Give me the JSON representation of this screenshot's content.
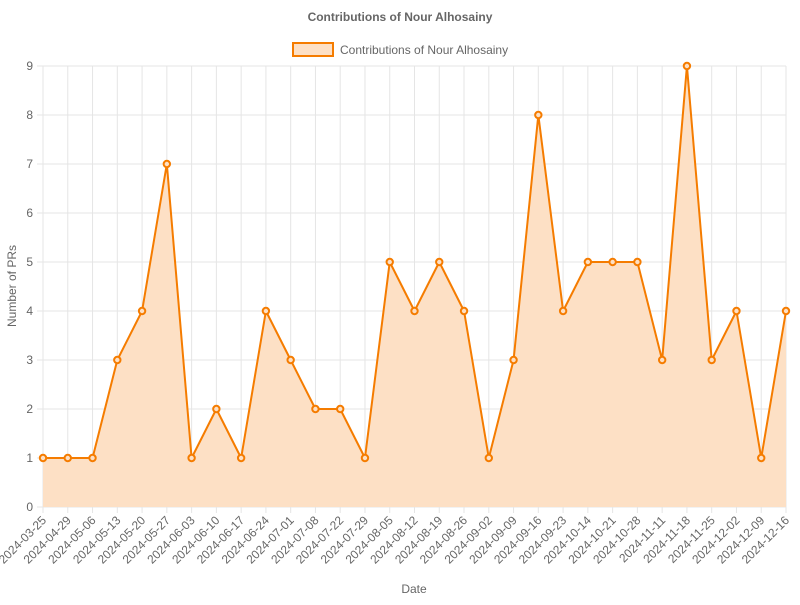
{
  "chart_data": {
    "type": "area",
    "title": "Contributions of Nour Alhosainy",
    "xlabel": "Date",
    "ylabel": "Number of PRs",
    "ylim": [
      0,
      9
    ],
    "grid": true,
    "legend_position": "top",
    "categories": [
      "2024-03-25",
      "2024-04-29",
      "2024-05-06",
      "2024-05-13",
      "2024-05-20",
      "2024-05-27",
      "2024-06-03",
      "2024-06-10",
      "2024-06-17",
      "2024-06-24",
      "2024-07-01",
      "2024-07-08",
      "2024-07-22",
      "2024-07-29",
      "2024-08-05",
      "2024-08-12",
      "2024-08-19",
      "2024-08-26",
      "2024-09-02",
      "2024-09-09",
      "2024-09-16",
      "2024-09-23",
      "2024-10-14",
      "2024-10-21",
      "2024-10-28",
      "2024-11-11",
      "2024-11-18",
      "2024-11-25",
      "2024-12-02",
      "2024-12-09",
      "2024-12-16"
    ],
    "y_ticks": [
      "0",
      "1",
      "2",
      "3",
      "4",
      "5",
      "6",
      "7",
      "8",
      "9"
    ],
    "series": [
      {
        "name": "Contributions of Nour Alhosainy",
        "values": [
          1,
          1,
          1,
          3,
          4,
          7,
          1,
          2,
          1,
          4,
          3,
          2,
          2,
          1,
          5,
          4,
          5,
          4,
          1,
          3,
          8,
          4,
          5,
          5,
          5,
          3,
          9,
          3,
          4,
          1,
          4
        ],
        "line_color": "#f57c00",
        "fill_color": "#fde0c5"
      }
    ]
  }
}
